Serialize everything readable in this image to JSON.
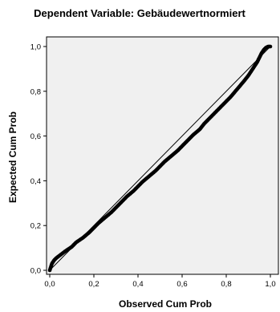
{
  "chart_data": {
    "type": "scatter",
    "title": "Dependent Variable: Gebäudewertnormiert",
    "xlabel": "Observed Cum Prob",
    "ylabel": "Expected Cum Prob",
    "xlim": [
      0,
      1
    ],
    "ylim": [
      0,
      1
    ],
    "x_ticks": [
      "0,0",
      "0,2",
      "0,4",
      "0,6",
      "0,8",
      "1,0"
    ],
    "y_ticks": [
      "0,0",
      "0,2",
      "0,4",
      "0,6",
      "0,8",
      "1,0"
    ],
    "grid": false,
    "legend": "none",
    "reference_line": {
      "from": [
        0,
        0
      ],
      "to": [
        1,
        1
      ]
    },
    "series": [
      {
        "x": [
          0.0,
          0.005,
          0.01,
          0.02,
          0.03,
          0.05,
          0.07,
          0.1,
          0.12,
          0.15,
          0.18,
          0.2,
          0.22,
          0.25,
          0.28,
          0.3,
          0.32,
          0.35,
          0.38,
          0.4,
          0.42,
          0.45,
          0.48,
          0.5,
          0.52,
          0.55,
          0.58,
          0.6,
          0.62,
          0.65,
          0.68,
          0.7,
          0.72,
          0.75,
          0.78,
          0.8,
          0.82,
          0.85,
          0.88,
          0.9,
          0.92,
          0.94,
          0.95,
          0.96,
          0.97,
          0.98,
          0.99,
          1.0
        ],
        "y": [
          0.0,
          0.015,
          0.03,
          0.045,
          0.055,
          0.07,
          0.085,
          0.105,
          0.125,
          0.145,
          0.17,
          0.19,
          0.21,
          0.235,
          0.26,
          0.28,
          0.3,
          0.33,
          0.355,
          0.375,
          0.395,
          0.42,
          0.445,
          0.465,
          0.485,
          0.51,
          0.535,
          0.555,
          0.575,
          0.605,
          0.63,
          0.655,
          0.675,
          0.705,
          0.735,
          0.755,
          0.775,
          0.81,
          0.845,
          0.87,
          0.9,
          0.93,
          0.95,
          0.97,
          0.985,
          0.995,
          1.0,
          1.0
        ]
      }
    ],
    "colors": {
      "plot_background": "#f0f0f0",
      "points": "#000000",
      "reference_line": "#000000"
    }
  }
}
